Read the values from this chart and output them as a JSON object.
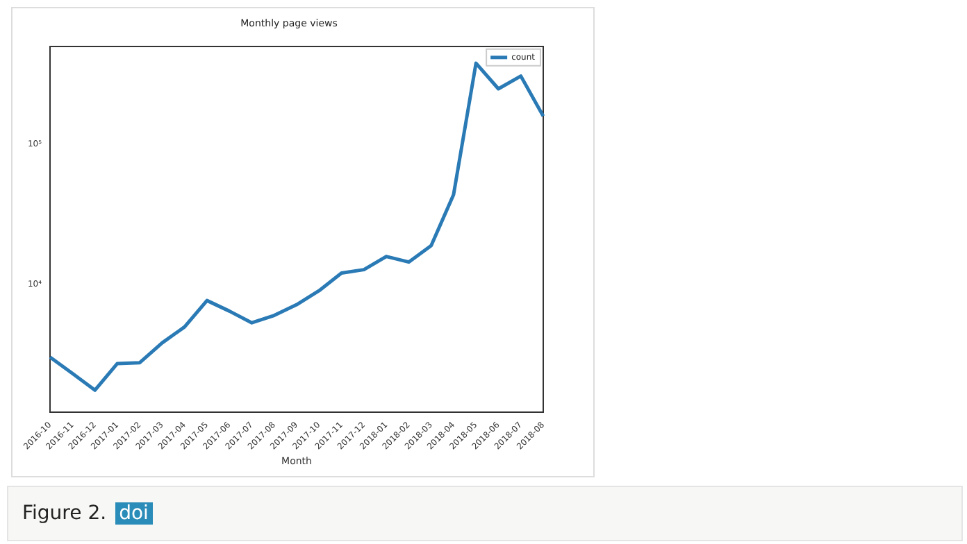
{
  "chart_data": {
    "type": "line",
    "title": "Monthly page views",
    "xlabel": "Month",
    "categories": [
      "2016-10",
      "2016-11",
      "2016-12",
      "2017-01",
      "2017-02",
      "2017-03",
      "2017-04",
      "2017-05",
      "2017-06",
      "2017-07",
      "2017-08",
      "2017-09",
      "2017-10",
      "2017-11",
      "2017-12",
      "2018-01",
      "2018-02",
      "2018-03",
      "2018-04",
      "2018-05",
      "2018-06",
      "2018-07",
      "2018-08"
    ],
    "series": [
      {
        "name": "count",
        "color": "#2a7ab5",
        "values": [
          3040,
          2330,
          1770,
          2740,
          2780,
          3850,
          5000,
          7710,
          6480,
          5350,
          6040,
          7210,
          9060,
          12100,
          12800,
          15900,
          14500,
          19000,
          43900,
          379000,
          249000,
          307000,
          159000
        ]
      }
    ],
    "log": "y",
    "ylim": [
      1240,
      500000
    ],
    "yticks": [
      {
        "value": 10000,
        "label": "10⁴"
      },
      {
        "value": 100000,
        "label": "10⁵"
      }
    ],
    "grid": false,
    "legend": "top right",
    "marker": "none",
    "line_style": "solid",
    "annotations": [
      "Figure 2.",
      "doi"
    ]
  }
}
